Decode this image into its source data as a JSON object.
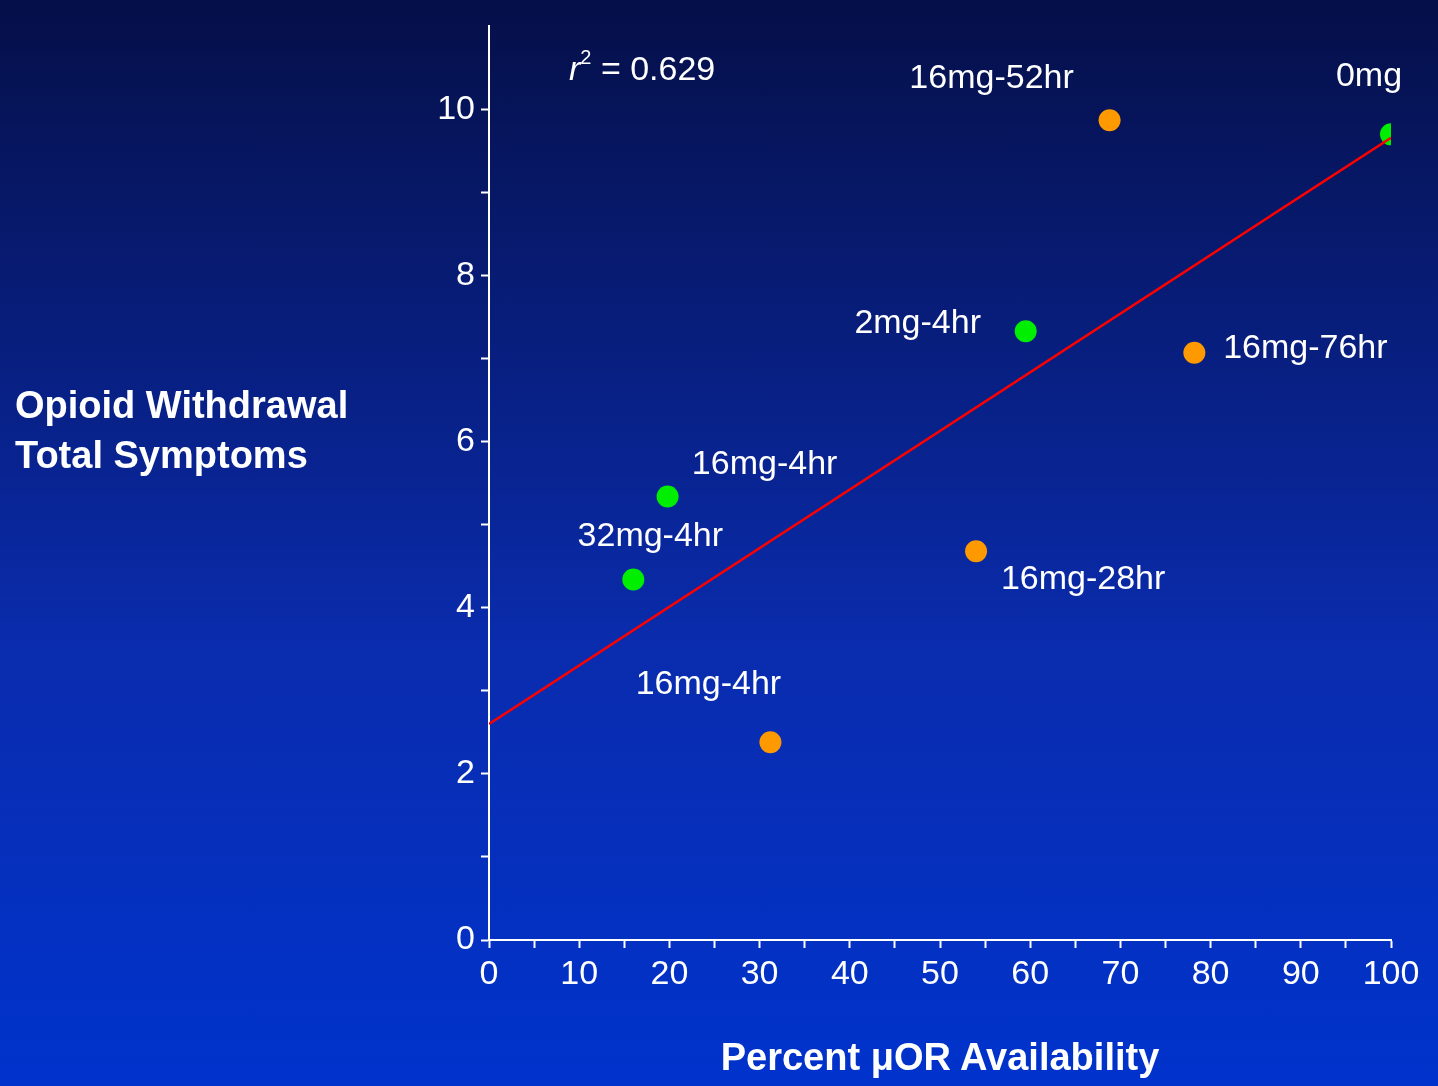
{
  "chart_data": {
    "type": "scatter",
    "xlabel": "Percent μOR Availability",
    "ylabel": "Opioid Withdrawal Total Symptoms",
    "xlim": [
      0,
      100
    ],
    "ylim": [
      0,
      11
    ],
    "xticks": [
      0,
      {
        "value": 5,
        "label": null
      },
      10,
      {
        "value": 15,
        "label": null
      },
      20,
      {
        "value": 25,
        "label": null
      },
      30,
      {
        "value": 35,
        "label": null
      },
      40,
      {
        "value": 45,
        "label": null
      },
      50,
      {
        "value": 55,
        "label": null
      },
      60,
      {
        "value": 65,
        "label": null
      },
      70,
      {
        "value": 75,
        "label": null
      },
      80,
      {
        "value": 85,
        "label": null
      },
      90,
      {
        "value": 95,
        "label": null
      },
      100
    ],
    "yticks": [
      0,
      {
        "value": 1,
        "label": null
      },
      2,
      {
        "value": 3,
        "label": null
      },
      4,
      {
        "value": 5,
        "label": null
      },
      6,
      {
        "value": 7,
        "label": null
      },
      8,
      {
        "value": 9,
        "label": null
      },
      10
    ],
    "grid": false,
    "legend": false,
    "marker": "circle",
    "series": [
      {
        "color": "#00ee00",
        "x": [
          100,
          59.5,
          19.8,
          16.0
        ],
        "values": [
          9.7,
          7.33,
          5.34,
          4.34
        ]
      },
      {
        "color": "#ff9900",
        "x": [
          68.8,
          78.2,
          54.0,
          31.2
        ],
        "values": [
          9.87,
          7.07,
          4.68,
          2.38
        ]
      },
      {
        "type": "line",
        "color": "#ff0000",
        "x": [
          0,
          100
        ],
        "values": [
          2.6,
          9.66
        ],
        "line_style": "solid",
        "marker": "none"
      }
    ],
    "annotations": [
      "r$^{2}$ = 0.629",
      {
        "text": "0mg",
        "x": 100,
        "y": 9.7
      },
      {
        "text": "2mg-4hr",
        "x": 59.5,
        "y": 7.33
      },
      {
        "text": "16mg-4hr",
        "x": 19.8,
        "y": 5.34
      },
      {
        "text": "32mg-4hr",
        "x": 16.0,
        "y": 4.34
      },
      {
        "text": "16mg-52hr",
        "x": 68.8,
        "y": 9.87
      },
      {
        "text": "16mg-76hr",
        "x": 78.2,
        "y": 7.07
      },
      {
        "text": "16mg-28hr",
        "x": 54.0,
        "y": 4.68
      },
      {
        "text": "16mg-4hr",
        "x": 31.2,
        "y": 2.38
      }
    ]
  }
}
